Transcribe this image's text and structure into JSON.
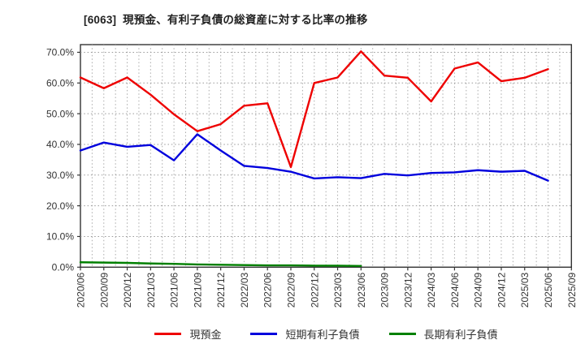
{
  "header": {
    "title": "[6063]  現預金、有利子負債の総資産に対する比率の推移"
  },
  "chart_data": {
    "type": "line",
    "title": "[6063]  現預金、有利子負債の総資産に対する比率の推移",
    "xlabel": "",
    "ylabel": "",
    "ylim": [
      0,
      72.5
    ],
    "yticks": [
      0,
      10,
      20,
      30,
      40,
      50,
      60,
      70
    ],
    "ytick_suffix": "%",
    "grid": true,
    "legend_position": "bottom-center",
    "categories": [
      "2020/06",
      "2020/09",
      "2020/12",
      "2021/03",
      "2021/06",
      "2021/09",
      "2021/12",
      "2022/03",
      "2022/06",
      "2022/09",
      "2022/12",
      "2023/03",
      "2023/06",
      "2023/09",
      "2023/12",
      "2024/03",
      "2024/06",
      "2024/09",
      "2024/12",
      "2025/03",
      "2025/06",
      "2025/09"
    ],
    "series": [
      {
        "id": "cash",
        "name": "現預金",
        "color": "#ee0000",
        "values": [
          61.8,
          58.3,
          61.8,
          56.2,
          49.8,
          44.3,
          46.6,
          52.6,
          53.4,
          32.6,
          60.0,
          61.8,
          70.3,
          62.4,
          61.7,
          54.0,
          64.7,
          66.7,
          60.6,
          61.7,
          64.5,
          null
        ]
      },
      {
        "id": "short-term-debt",
        "name": "短期有利子負債",
        "color": "#0000dd",
        "values": [
          38.0,
          40.6,
          39.2,
          39.8,
          34.8,
          43.3,
          38.0,
          33.0,
          32.3,
          31.1,
          28.9,
          29.3,
          29.0,
          30.4,
          29.9,
          30.7,
          30.9,
          31.6,
          31.1,
          31.4,
          28.2,
          null
        ]
      },
      {
        "id": "long-term-debt",
        "name": "長期有利子負債",
        "color": "#008000",
        "values": [
          1.6,
          1.5,
          1.4,
          1.2,
          1.1,
          0.9,
          0.8,
          0.7,
          0.6,
          0.6,
          0.5,
          0.5,
          0.4,
          null,
          null,
          null,
          null,
          null,
          null,
          null,
          null,
          null
        ]
      }
    ]
  }
}
